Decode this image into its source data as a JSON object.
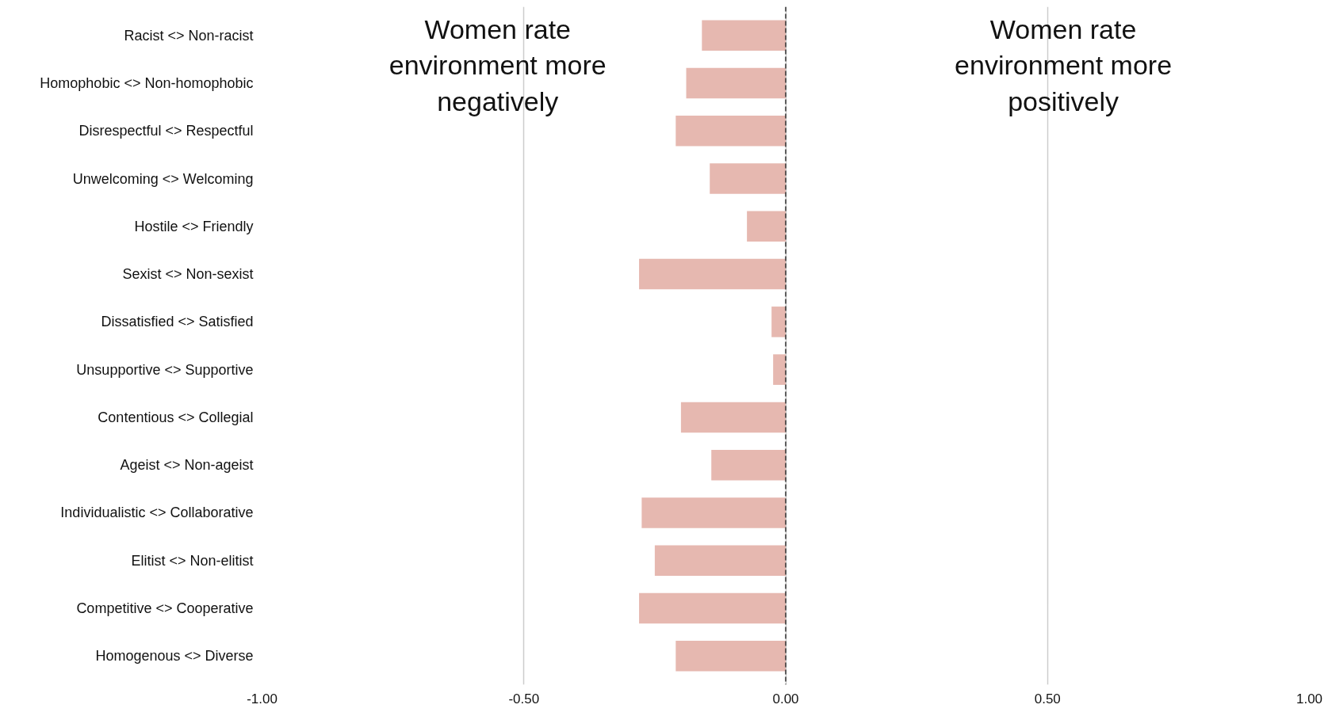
{
  "chart_data": {
    "type": "bar",
    "orientation": "horizontal",
    "categories": [
      "Racist <> Non-racist",
      "Homophobic <> Non-homophobic",
      "Disrespectful <> Respectful",
      "Unwelcoming <> Welcoming",
      "Hostile <> Friendly",
      "Sexist <> Non-sexist",
      "Dissatisfied <> Satisfied",
      "Unsupportive <> Supportive",
      "Contentious <> Collegial",
      "Ageist <> Non-ageist",
      "Individualistic <> Collaborative",
      "Elitist <> Non-elitist",
      "Competitive <> Cooperative",
      "Homogenous <> Diverse"
    ],
    "values": [
      -0.16,
      -0.19,
      -0.21,
      -0.145,
      -0.074,
      -0.28,
      -0.027,
      -0.024,
      -0.2,
      -0.142,
      -0.275,
      -0.25,
      -0.28,
      -0.21
    ],
    "color": "#e6b8b0",
    "xlim": [
      -1.0,
      1.0
    ],
    "xticks": [
      {
        "value": -1.0,
        "label": "-1.00"
      },
      {
        "value": -0.5,
        "label": "-0.50"
      },
      {
        "value": 0.0,
        "label": "0.00"
      },
      {
        "value": 0.5,
        "label": "0.50"
      },
      {
        "value": 1.0,
        "label": "1.00"
      }
    ],
    "grid": "x",
    "ref_lines": [
      {
        "axis": "x",
        "value": 0.0,
        "color": "#333333",
        "line_style": "dashed"
      }
    ],
    "annotations": [
      "Women rate\nenvironment more\nnegatively",
      "Women rate\nenvironment more\npositively"
    ]
  }
}
